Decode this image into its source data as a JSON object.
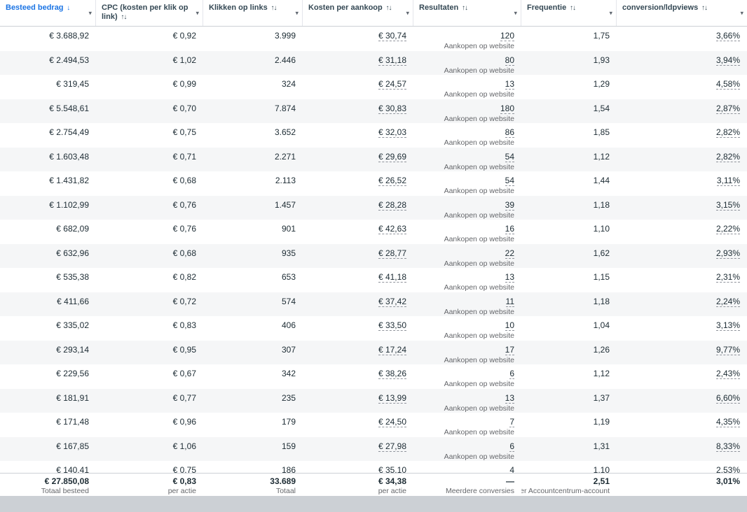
{
  "accent_color": "#1b74e4",
  "ui": {
    "caret": "▾"
  },
  "columns": [
    {
      "label": "Besteed bedrag",
      "sort": "↓",
      "sorted": true
    },
    {
      "label": "CPC (kosten per klik op link)",
      "sort": "↑↓",
      "sorted": false
    },
    {
      "label": "Klikken op links",
      "sort": "↑↓",
      "sorted": false
    },
    {
      "label": "Kosten per aankoop",
      "sort": "↑↓",
      "sorted": false
    },
    {
      "label": "Resultaten",
      "sort": "↑↓",
      "sorted": false
    },
    {
      "label": "Frequentie",
      "sort": "↑↓",
      "sorted": false
    },
    {
      "label": "conversion/ldpviews",
      "sort": "↑↓",
      "sorted": false
    }
  ],
  "result_sublabel": "Aankopen op website",
  "rows": [
    {
      "spend": "€ 3.688,92",
      "cpc": "€ 0,92",
      "clicks": "3.999",
      "cost_per_purchase": "€ 30,74",
      "results": "120",
      "frequency": "1,75",
      "conversion": "3,66%"
    },
    {
      "spend": "€ 2.494,53",
      "cpc": "€ 1,02",
      "clicks": "2.446",
      "cost_per_purchase": "€ 31,18",
      "results": "80",
      "frequency": "1,93",
      "conversion": "3,94%"
    },
    {
      "spend": "€ 319,45",
      "cpc": "€ 0,99",
      "clicks": "324",
      "cost_per_purchase": "€ 24,57",
      "results": "13",
      "frequency": "1,29",
      "conversion": "4,58%"
    },
    {
      "spend": "€ 5.548,61",
      "cpc": "€ 0,70",
      "clicks": "7.874",
      "cost_per_purchase": "€ 30,83",
      "results": "180",
      "frequency": "1,54",
      "conversion": "2,87%"
    },
    {
      "spend": "€ 2.754,49",
      "cpc": "€ 0,75",
      "clicks": "3.652",
      "cost_per_purchase": "€ 32,03",
      "results": "86",
      "frequency": "1,85",
      "conversion": "2,82%"
    },
    {
      "spend": "€ 1.603,48",
      "cpc": "€ 0,71",
      "clicks": "2.271",
      "cost_per_purchase": "€ 29,69",
      "results": "54",
      "frequency": "1,12",
      "conversion": "2,82%"
    },
    {
      "spend": "€ 1.431,82",
      "cpc": "€ 0,68",
      "clicks": "2.113",
      "cost_per_purchase": "€ 26,52",
      "results": "54",
      "frequency": "1,44",
      "conversion": "3,11%"
    },
    {
      "spend": "€ 1.102,99",
      "cpc": "€ 0,76",
      "clicks": "1.457",
      "cost_per_purchase": "€ 28,28",
      "results": "39",
      "frequency": "1,18",
      "conversion": "3,15%"
    },
    {
      "spend": "€ 682,09",
      "cpc": "€ 0,76",
      "clicks": "901",
      "cost_per_purchase": "€ 42,63",
      "results": "16",
      "frequency": "1,10",
      "conversion": "2,22%"
    },
    {
      "spend": "€ 632,96",
      "cpc": "€ 0,68",
      "clicks": "935",
      "cost_per_purchase": "€ 28,77",
      "results": "22",
      "frequency": "1,62",
      "conversion": "2,93%"
    },
    {
      "spend": "€ 535,38",
      "cpc": "€ 0,82",
      "clicks": "653",
      "cost_per_purchase": "€ 41,18",
      "results": "13",
      "frequency": "1,15",
      "conversion": "2,31%"
    },
    {
      "spend": "€ 411,66",
      "cpc": "€ 0,72",
      "clicks": "574",
      "cost_per_purchase": "€ 37,42",
      "results": "11",
      "frequency": "1,18",
      "conversion": "2,24%"
    },
    {
      "spend": "€ 335,02",
      "cpc": "€ 0,83",
      "clicks": "406",
      "cost_per_purchase": "€ 33,50",
      "results": "10",
      "frequency": "1,04",
      "conversion": "3,13%"
    },
    {
      "spend": "€ 293,14",
      "cpc": "€ 0,95",
      "clicks": "307",
      "cost_per_purchase": "€ 17,24",
      "results": "17",
      "frequency": "1,26",
      "conversion": "9,77%"
    },
    {
      "spend": "€ 229,56",
      "cpc": "€ 0,67",
      "clicks": "342",
      "cost_per_purchase": "€ 38,26",
      "results": "6",
      "frequency": "1,12",
      "conversion": "2,43%"
    },
    {
      "spend": "€ 181,91",
      "cpc": "€ 0,77",
      "clicks": "235",
      "cost_per_purchase": "€ 13,99",
      "results": "13",
      "frequency": "1,37",
      "conversion": "6,60%"
    },
    {
      "spend": "€ 171,48",
      "cpc": "€ 0,96",
      "clicks": "179",
      "cost_per_purchase": "€ 24,50",
      "results": "7",
      "frequency": "1,19",
      "conversion": "4,35%"
    },
    {
      "spend": "€ 167,85",
      "cpc": "€ 1,06",
      "clicks": "159",
      "cost_per_purchase": "€ 27,98",
      "results": "6",
      "frequency": "1,31",
      "conversion": "8,33%"
    },
    {
      "spend": "€ 140,41",
      "cpc": "€ 0,75",
      "clicks": "186",
      "cost_per_purchase": "€ 35,10",
      "results": "4",
      "frequency": "1,10",
      "conversion": "2,53%"
    }
  ],
  "footer": {
    "spend": "€ 27.850,08",
    "spend_sub": "Totaal besteed",
    "cpc": "€ 0,83",
    "cpc_sub": "per actie",
    "clicks": "33.689",
    "clicks_sub": "Totaal",
    "cost_per_purchase": "€ 34,38",
    "cost_sub": "per actie",
    "results": "—",
    "results_sub": "Meerdere conversies",
    "frequency": "2,51",
    "frequency_sub": "Per Accountcentrum-account",
    "conversion": "3,01%"
  }
}
